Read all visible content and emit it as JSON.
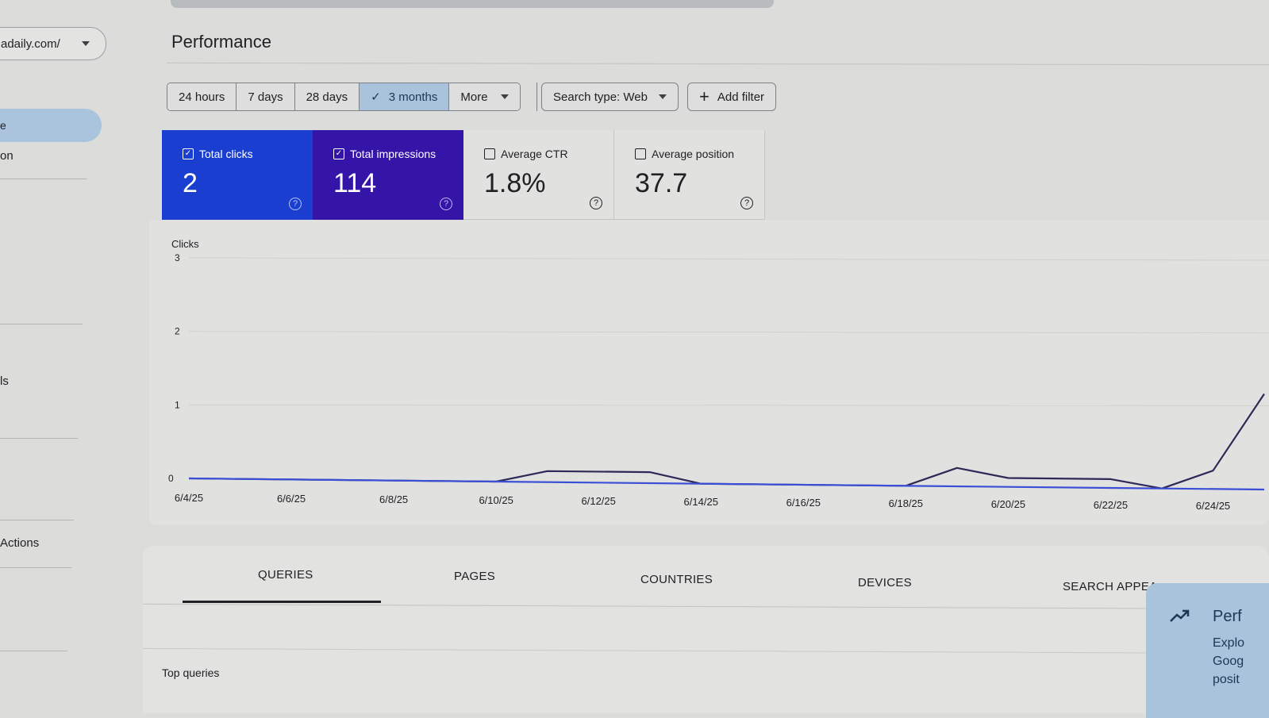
{
  "sidebar": {
    "property": "adaily.com/",
    "active_item": "e",
    "items": [
      "on",
      "ls",
      "Actions"
    ]
  },
  "page": {
    "title": "Performance"
  },
  "filters": {
    "ranges": [
      "24 hours",
      "7 days",
      "28 days",
      "3 months",
      "More"
    ],
    "active_range": "3 months",
    "search_type": "Search type: Web",
    "add_filter": "Add filter"
  },
  "metrics": [
    {
      "label": "Total clicks",
      "value": "2",
      "checked": true
    },
    {
      "label": "Total impressions",
      "value": "114",
      "checked": true
    },
    {
      "label": "Average CTR",
      "value": "1.8%",
      "checked": false
    },
    {
      "label": "Average position",
      "value": "37.7",
      "checked": false
    }
  ],
  "chart_data": {
    "type": "line",
    "ylabel": "Clicks",
    "ylim": [
      0,
      3
    ],
    "yticks": [
      "3",
      "2",
      "1",
      "0"
    ],
    "x_tick_labels": [
      "6/4/25",
      "6/6/25",
      "6/8/25",
      "6/10/25",
      "6/12/25",
      "6/14/25",
      "6/16/25",
      "6/18/25",
      "6/20/25",
      "6/22/25",
      "6/24/25"
    ],
    "grid": true,
    "series": [
      {
        "color": "#2d2a58",
        "points": [
          [
            "6/4/25",
            0
          ],
          [
            "6/10/25",
            0
          ],
          [
            "6/11/25",
            0.15
          ],
          [
            "6/13/25",
            0.15
          ],
          [
            "6/14/25",
            0
          ],
          [
            "6/18/25",
            0
          ],
          [
            "6/19/25",
            0.25
          ],
          [
            "6/20/25",
            0.12
          ],
          [
            "6/22/25",
            0.12
          ],
          [
            "6/23/25",
            0
          ],
          [
            "6/24/25",
            0.25
          ],
          [
            "6/25/25",
            1.3
          ]
        ]
      },
      {
        "color": "#3b4fd6",
        "points": [
          [
            "6/4/25",
            0
          ],
          [
            "6/25/25",
            0
          ]
        ]
      }
    ]
  },
  "tabs": {
    "items": [
      "QUERIES",
      "PAGES",
      "COUNTRIES",
      "DEVICES",
      "SEARCH APPEA"
    ],
    "active": "QUERIES",
    "section_title": "Top queries"
  },
  "promo": {
    "title": "Perf",
    "lines": [
      "Explo",
      "Goog",
      "posit"
    ]
  }
}
